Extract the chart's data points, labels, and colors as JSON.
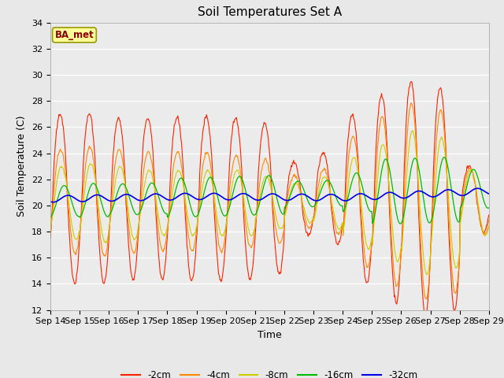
{
  "title": "Soil Temperatures Set A",
  "xlabel": "Time",
  "ylabel": "Soil Temperature (C)",
  "annotation": "BA_met",
  "ylim": [
    12,
    34
  ],
  "yticks": [
    12,
    14,
    16,
    18,
    20,
    22,
    24,
    26,
    28,
    30,
    32,
    34
  ],
  "xtick_labels": [
    "Sep 14",
    "Sep 15",
    "Sep 16",
    "Sep 17",
    "Sep 18",
    "Sep 19",
    "Sep 20",
    "Sep 21",
    "Sep 22",
    "Sep 23",
    "Sep 24",
    "Sep 25",
    "Sep 26",
    "Sep 27",
    "Sep 28",
    "Sep 29"
  ],
  "colors": {
    "-2cm": "#FF2200",
    "-4cm": "#FF8800",
    "-8cm": "#CCCC00",
    "-16cm": "#00BB00",
    "-32cm": "#0000EE"
  },
  "background_color": "#E8E8E8",
  "plot_bg_color": "#EBEBEB",
  "title_fontsize": 11,
  "axis_label_fontsize": 9,
  "tick_fontsize": 8
}
